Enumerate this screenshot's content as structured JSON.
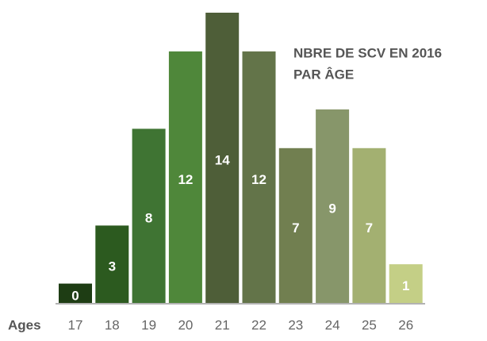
{
  "chart_data": {
    "type": "bar",
    "title": [
      "NBRE DE SCV EN 2016",
      "PAR ÂGE"
    ],
    "x_label": "Ages",
    "categories": [
      "17",
      "18",
      "19",
      "20",
      "21",
      "22",
      "23",
      "24",
      "25",
      "26"
    ],
    "values": [
      0,
      3,
      8,
      12,
      14,
      12,
      7,
      9,
      7,
      1
    ],
    "colors": [
      "#1e3d14",
      "#2c5a1f",
      "#3f7433",
      "#4f873a",
      "#4e5e38",
      "#637449",
      "#717f50",
      "#87966a",
      "#a3b071",
      "#c4cf86"
    ],
    "ylim": [
      -1,
      14
    ]
  }
}
